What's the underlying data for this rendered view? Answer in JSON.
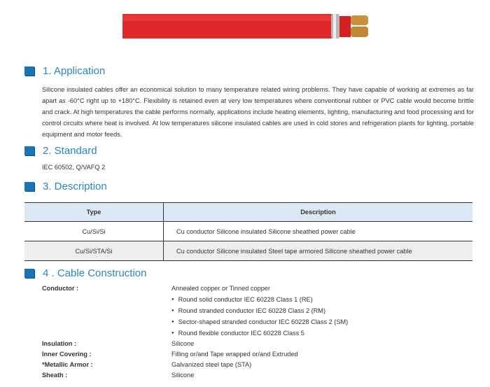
{
  "sections": {
    "application": {
      "title": "1. Application",
      "body": "Silicone insulated cables offer an economical solution to many temperature related wiring problems. They have capable of working at extremes as far apart as -60°C right up to +180°C. Flexibility is retained even at very low temperatures where conventional rubber or PVC cable would become brittle and crack. At high temperatures the cable performs normally, applications include heating elements, lighting, manufacturing and food processing and for control circuits where heat is involved. At low temperatures silicone insulated cables are used in cold stores and refrigeration plants for lighting, portable equipment and motor feeds."
    },
    "standard": {
      "title": "2. Standard",
      "body": "IEC 60502, Q/VAFQ 2"
    },
    "description": {
      "title": "3. Description",
      "headers": [
        "Type",
        "Description"
      ],
      "rows": [
        [
          "Cu/Si/Si",
          "Cu conductor Silicone insulated Silicone sheathed power cable"
        ],
        [
          "Cu/Si/STA/Si",
          "Cu conductor Silicone insulated Steel tape armored Silicone sheathed power cable"
        ]
      ]
    },
    "construction": {
      "title": "4 . Cable Construction",
      "conductor_label": "Conductor :",
      "conductor_value": "Annealed copper or Tinned copper",
      "conductor_bullets": [
        "Round solid conductor IEC 60228 Class 1 (RE)",
        "Round stranded conductor IEC 60228 Class 2 (RM)",
        "Sector-shaped stranded conductor IEC 60228 Class 2 (SM)",
        "Round flexible conductor IEC 60228 Class 5"
      ],
      "items": [
        {
          "label": "Insulation :",
          "value": "Silicone"
        },
        {
          "label": "Inner Covering :",
          "value": "Filling or/and Tape wrapped or/and Extruded"
        },
        {
          "label": "*Metallic Armor :",
          "value": "Galvanized steel tape (STA)"
        },
        {
          "label": "Sheath :",
          "value": "Silicone"
        }
      ]
    }
  },
  "colors": {
    "heading": "#2a86c6",
    "marker": "#1a74b8",
    "cable": "#e0282a",
    "table_header": "#dce9f5"
  }
}
